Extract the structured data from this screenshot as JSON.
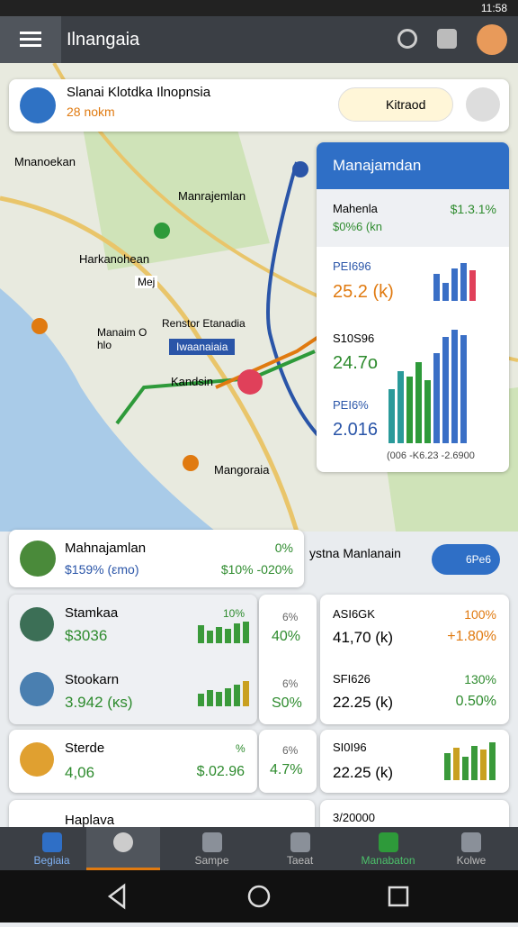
{
  "status_bar": {
    "time": "11:58"
  },
  "app_bar": {
    "title": "Ilnangaia"
  },
  "location_card": {
    "title": "Slanai Klotdka Ilnopnsia",
    "subtitle": "28 nokm",
    "button": "Kitraod"
  },
  "map": {
    "labels": [
      "Mnanoekan",
      "Manrajemlan",
      "Harkanohean",
      "Mej",
      "Manaim O hlo",
      "Renstor Etanadia",
      "Iwaanaiaia",
      "Kandsin",
      "Mangoraia"
    ]
  },
  "stats_panel": {
    "title": "Manajamdan",
    "rows": [
      {
        "label": "Mahenla",
        "value": "$1.3.1%",
        "sub": "$0%6 (kn"
      },
      {
        "label": "PEI696",
        "value": "25.2 (k)"
      },
      {
        "label": "S10S96",
        "value": "24.7o"
      },
      {
        "label": "PEI6%",
        "value": "2.016"
      }
    ],
    "axis": "(006 -K6.23 -2.6900"
  },
  "summary_card": {
    "title": "Mahnajamlan",
    "subtitle": "$159% (εmo)",
    "change": "0%",
    "range": "$10% -020%"
  },
  "system_panel": {
    "label": "ystna Manlanain",
    "toggle": "6Pe6"
  },
  "list": [
    {
      "name": "Stamkaa",
      "value": "$3036",
      "change": "10%",
      "mid_label": "6%",
      "mid_value": "40%",
      "right_label": "ASI6GK",
      "right_value": "41,70 (k)",
      "right_change": "100%",
      "right_delta": "+1.80%"
    },
    {
      "name": "Stookarn",
      "value": "3.942 (κs)",
      "mid_label": "6%",
      "mid_value": "S0%",
      "right_label": "SFI626",
      "right_value": "22.25 (k)",
      "right_change": "130%",
      "right_delta": "0.50%"
    },
    {
      "name": "Sterde",
      "value": "4,06",
      "change": "%",
      "amount": "$.02.96",
      "mid_label": "6%",
      "mid_value": "4.7%",
      "right_label": "SI0I96",
      "right_value": "22.25 (k)"
    },
    {
      "name": "Haplava",
      "right_label": "3/20000"
    }
  ],
  "bottom_nav": [
    "Begiaia",
    "Sampe",
    "Taeat",
    "Manabaton",
    "Kolwe"
  ]
}
